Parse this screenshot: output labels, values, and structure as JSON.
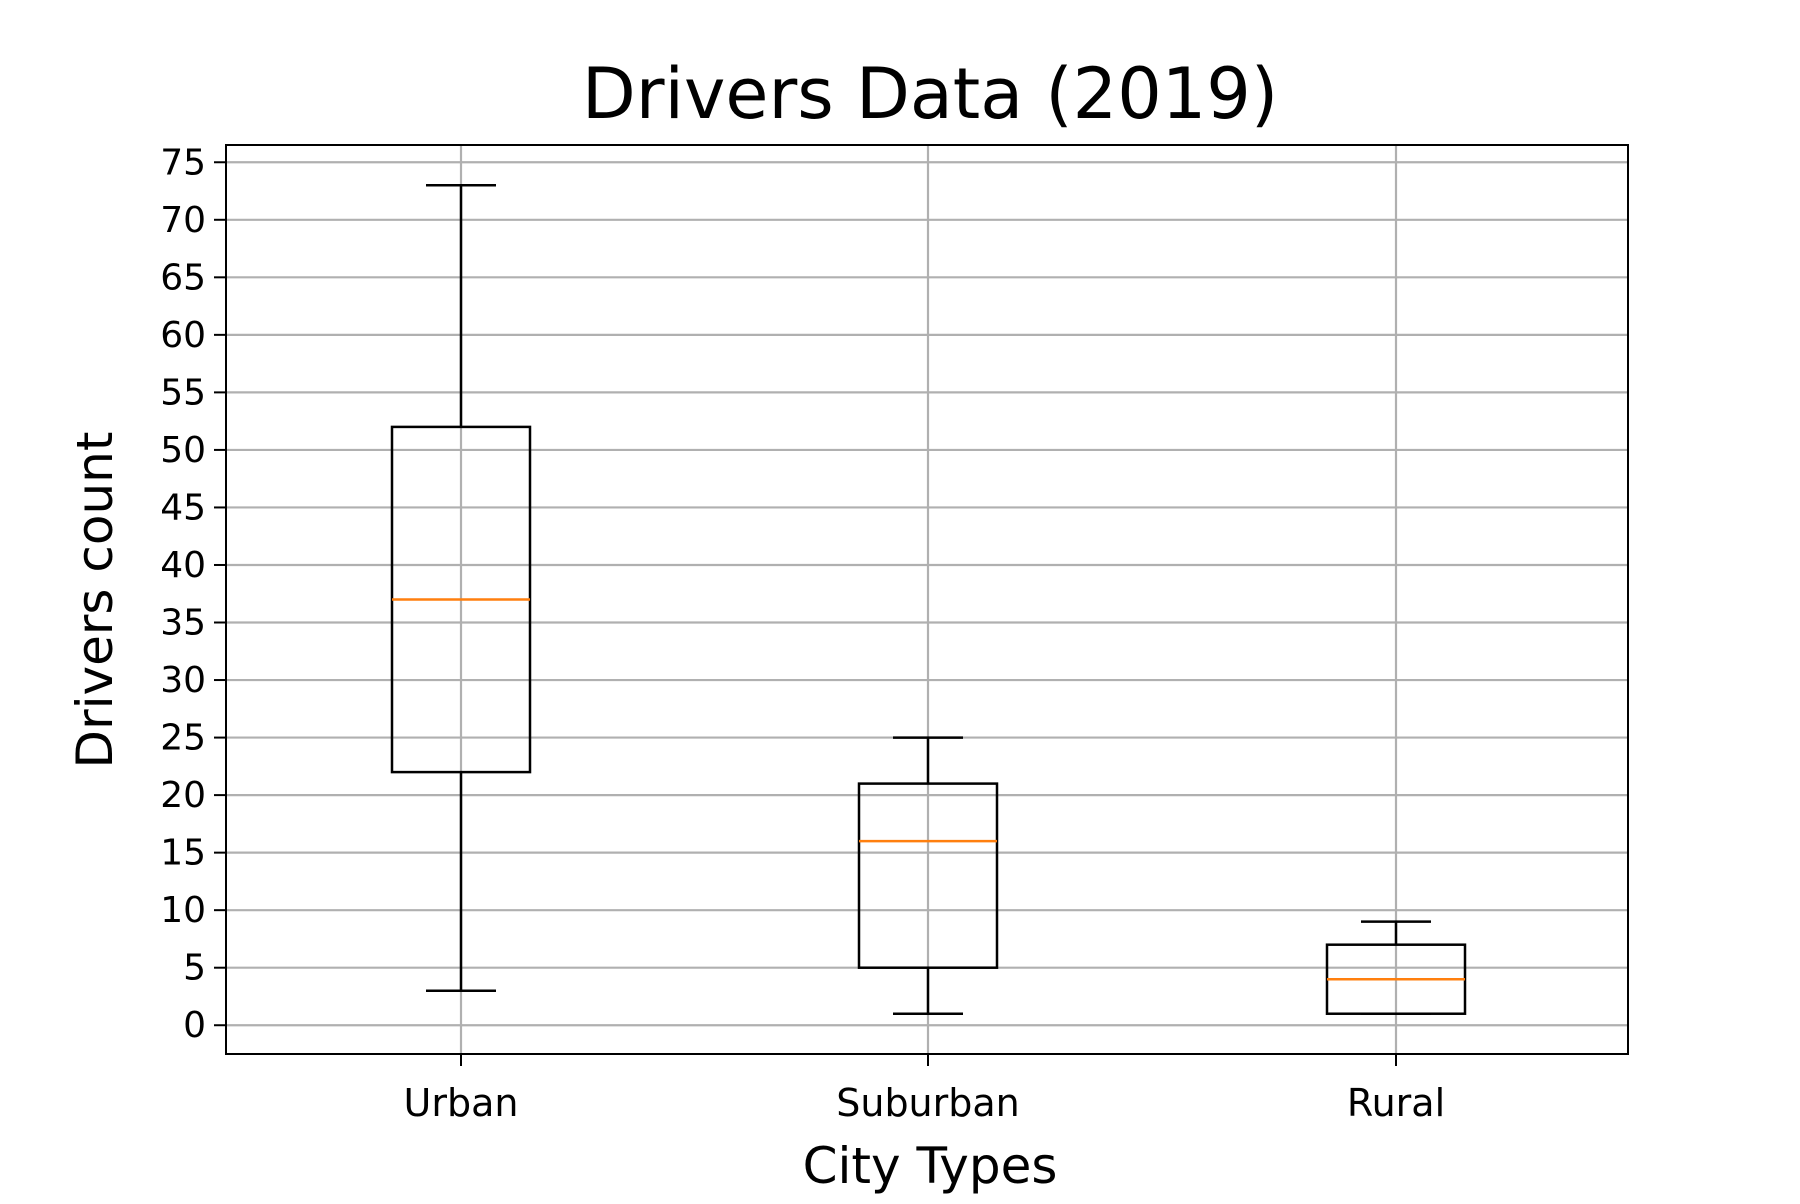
{
  "chart_data": {
    "type": "box",
    "title": "Drivers Data (2019)",
    "xlabel": "City Types",
    "ylabel": "Drivers count",
    "categories": [
      "Urban",
      "Suburban",
      "Rural"
    ],
    "boxes": [
      {
        "category": "Urban",
        "whisker_low": 3,
        "q1": 22,
        "median": 37,
        "q3": 52,
        "whisker_high": 73
      },
      {
        "category": "Suburban",
        "whisker_low": 1,
        "q1": 5,
        "median": 16,
        "q3": 21,
        "whisker_high": 25
      },
      {
        "category": "Rural",
        "whisker_low": 1,
        "q1": 1,
        "median": 4,
        "q3": 7,
        "whisker_high": 9
      }
    ],
    "yticks": [
      0,
      5,
      10,
      15,
      20,
      25,
      30,
      35,
      40,
      45,
      50,
      55,
      60,
      65,
      70,
      75
    ],
    "ylim": [
      -2.5,
      76.5
    ],
    "grid": true,
    "colors": {
      "box": "#000000",
      "median": "#ff7f0e",
      "grid": "#b0b0b0"
    }
  }
}
